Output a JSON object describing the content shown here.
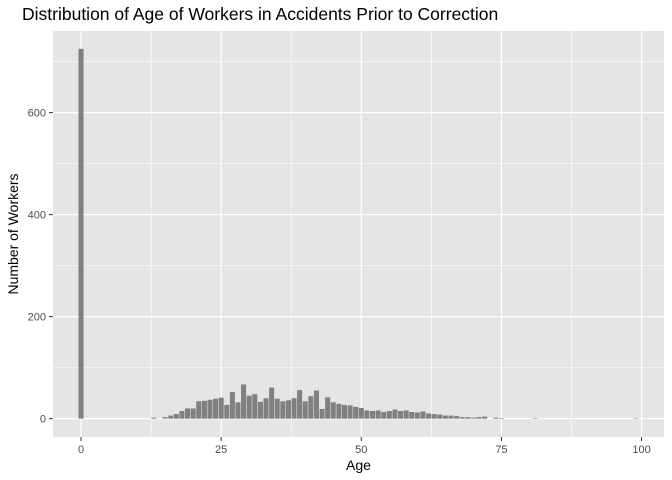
{
  "chart_data": {
    "type": "bar",
    "title": "Distribution of Age of Workers in Accidents Prior to Correction",
    "xlabel": "Age",
    "ylabel": "Number of Workers",
    "xlim": [
      -5,
      104
    ],
    "ylim": [
      -36,
      760
    ],
    "x_ticks": [
      0,
      25,
      50,
      75,
      100
    ],
    "y_ticks": [
      0,
      200,
      400,
      600
    ],
    "grid": true,
    "legend": "none",
    "colors": {
      "panel": "#e5e5e5",
      "grid": "#ffffff",
      "bar": "#808080"
    },
    "x": [
      0,
      13,
      15,
      16,
      17,
      18,
      19,
      20,
      21,
      22,
      23,
      24,
      25,
      26,
      27,
      28,
      29,
      30,
      31,
      32,
      33,
      34,
      35,
      36,
      37,
      38,
      39,
      40,
      41,
      42,
      43,
      44,
      45,
      46,
      47,
      48,
      49,
      50,
      51,
      52,
      53,
      54,
      55,
      56,
      57,
      58,
      59,
      60,
      61,
      62,
      63,
      64,
      65,
      66,
      67,
      68,
      69,
      70,
      71,
      72,
      74,
      75,
      81,
      99
    ],
    "values": [
      725,
      2,
      3,
      6,
      9,
      15,
      20,
      20,
      34,
      35,
      37,
      39,
      41,
      27,
      52,
      32,
      67,
      45,
      48,
      33,
      40,
      61,
      39,
      34,
      36,
      40,
      56,
      34,
      44,
      55,
      19,
      42,
      32,
      29,
      27,
      26,
      23,
      21,
      16,
      15,
      16,
      13,
      15,
      18,
      15,
      16,
      13,
      12,
      14,
      10,
      9,
      8,
      6,
      6,
      5,
      3,
      3,
      2,
      3,
      4,
      2,
      1,
      1,
      1
    ]
  }
}
